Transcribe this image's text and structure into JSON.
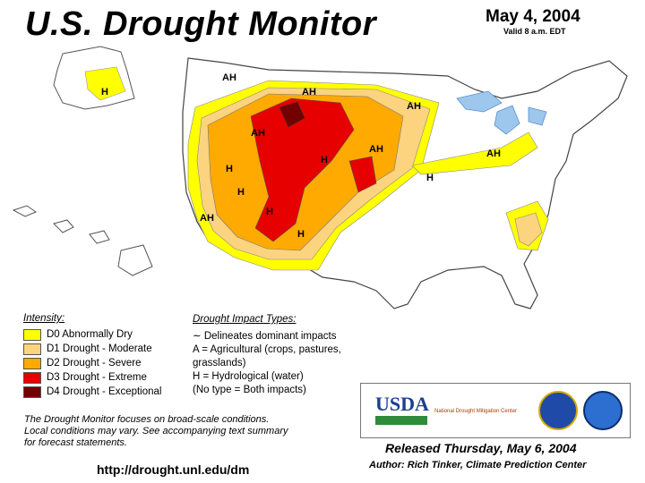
{
  "header": {
    "title": "U.S. Drought Monitor",
    "date": "May 4, 2004",
    "valid": "Valid 8 a.m. EDT"
  },
  "map": {
    "labels": [
      "AH",
      "AH",
      "AH",
      "AH",
      "AH",
      "AH",
      "AH",
      "H",
      "H",
      "H",
      "H",
      "H",
      "H",
      "H"
    ],
    "colors": {
      "D0": "#ffff00",
      "D1": "#fcd37f",
      "D2": "#ffaa00",
      "D3": "#e60000",
      "D4": "#730000",
      "water": "#9ec7ee",
      "land": "#ffffff"
    }
  },
  "legend": {
    "heading": "Intensity:",
    "items": [
      {
        "label": "D0 Abnormally Dry",
        "color": "#ffff00"
      },
      {
        "label": "D1 Drought - Moderate",
        "color": "#fcd37f"
      },
      {
        "label": "D2 Drought - Severe",
        "color": "#ffaa00"
      },
      {
        "label": "D3 Drought - Extreme",
        "color": "#e60000"
      },
      {
        "label": "D4 Drought - Exceptional",
        "color": "#730000"
      }
    ]
  },
  "impacts": {
    "heading": "Drought Impact Types:",
    "line1": "Delineates dominant impacts",
    "line2": "A = Agricultural (crops, pastures,",
    "line3": "grasslands)",
    "line4": "H = Hydrological (water)",
    "line5": "(No type = Both impacts)"
  },
  "footer": {
    "note1": "The Drought Monitor focuses on broad-scale conditions.",
    "note2": "Local conditions may vary.  See accompanying text summary",
    "note3": "for forecast statements.",
    "url": "http://drought.unl.edu/dm",
    "released": "Released Thursday, May 6, 2004",
    "author": "Author: Rich Tinker, Climate Prediction Center"
  },
  "logos": {
    "usda": "USDA",
    "ndmc": "National Drought Mitigation Center"
  }
}
